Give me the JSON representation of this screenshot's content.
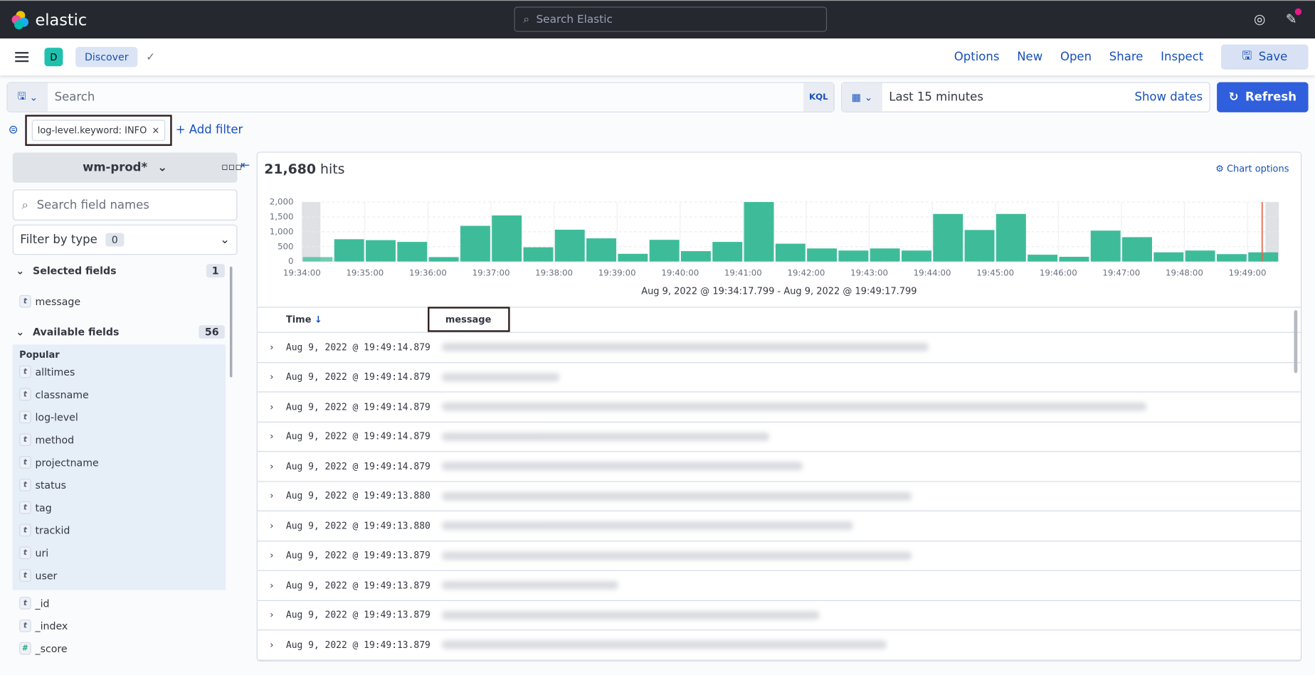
{
  "header": {
    "brand": "elastic",
    "search_placeholder": "Search Elastic",
    "icons": [
      "help-icon",
      "news-icon"
    ]
  },
  "nav": {
    "avatar": "D",
    "breadcrumb": "Discover",
    "menu": [
      "Options",
      "New",
      "Open",
      "Share",
      "Inspect"
    ],
    "save": "Save"
  },
  "query": {
    "placeholder": "Search",
    "language": "KQL",
    "time": "Last 15 minutes",
    "show_dates": "Show dates",
    "refresh": "Refresh"
  },
  "filters": {
    "pill": "log-level.keyword: INFO",
    "add": "+ Add filter"
  },
  "sidebar": {
    "index": "wm-prod*",
    "search_placeholder": "Search field names",
    "filter_type": "Filter by type",
    "filter_count": "0",
    "selected_title": "Selected fields",
    "selected_count": "1",
    "selected": [
      "message"
    ],
    "available_title": "Available fields",
    "available_count": "56",
    "popular_title": "Popular",
    "popular": [
      "alltimes",
      "classname",
      "log-level",
      "method",
      "projectname",
      "status",
      "tag",
      "trackid",
      "uri",
      "user"
    ],
    "other": [
      {
        "type": "t",
        "name": "_id"
      },
      {
        "type": "t",
        "name": "_index"
      },
      {
        "type": "#",
        "name": "_score"
      }
    ]
  },
  "results": {
    "hits": "21,680",
    "hits_label": "hits",
    "chart_options": "Chart options",
    "range": "Aug 9, 2022 @ 19:34:17.799 - Aug 9, 2022 @ 19:49:17.799",
    "col_time": "Time",
    "col_message": "message",
    "rows": [
      "Aug 9, 2022 @ 19:49:14.879",
      "Aug 9, 2022 @ 19:49:14.879",
      "Aug 9, 2022 @ 19:49:14.879",
      "Aug 9, 2022 @ 19:49:14.879",
      "Aug 9, 2022 @ 19:49:14.879",
      "Aug 9, 2022 @ 19:49:13.880",
      "Aug 9, 2022 @ 19:49:13.880",
      "Aug 9, 2022 @ 19:49:13.879",
      "Aug 9, 2022 @ 19:49:13.879",
      "Aug 9, 2022 @ 19:49:13.879",
      "Aug 9, 2022 @ 19:49:13.879"
    ]
  },
  "chart_data": {
    "type": "bar",
    "bar_color": "#3ebc9a",
    "ylim": [
      0,
      2000
    ],
    "yticks": [
      "0",
      "500",
      "1,000",
      "1,500",
      "2,000"
    ],
    "xticks": [
      "19:34:00",
      "19:35:00",
      "19:36:00",
      "19:37:00",
      "19:38:00",
      "19:39:00",
      "19:40:00",
      "19:41:00",
      "19:42:00",
      "19:43:00",
      "19:44:00",
      "19:45:00",
      "19:46:00",
      "19:47:00",
      "19:48:00",
      "19:49:00"
    ],
    "interval": "30s",
    "values": [
      150,
      750,
      720,
      660,
      150,
      1200,
      1550,
      480,
      1070,
      780,
      260,
      730,
      350,
      660,
      2000,
      600,
      440,
      370,
      440,
      370,
      1600,
      1060,
      1600,
      230,
      160,
      1040,
      820,
      310,
      370,
      250,
      310
    ]
  }
}
